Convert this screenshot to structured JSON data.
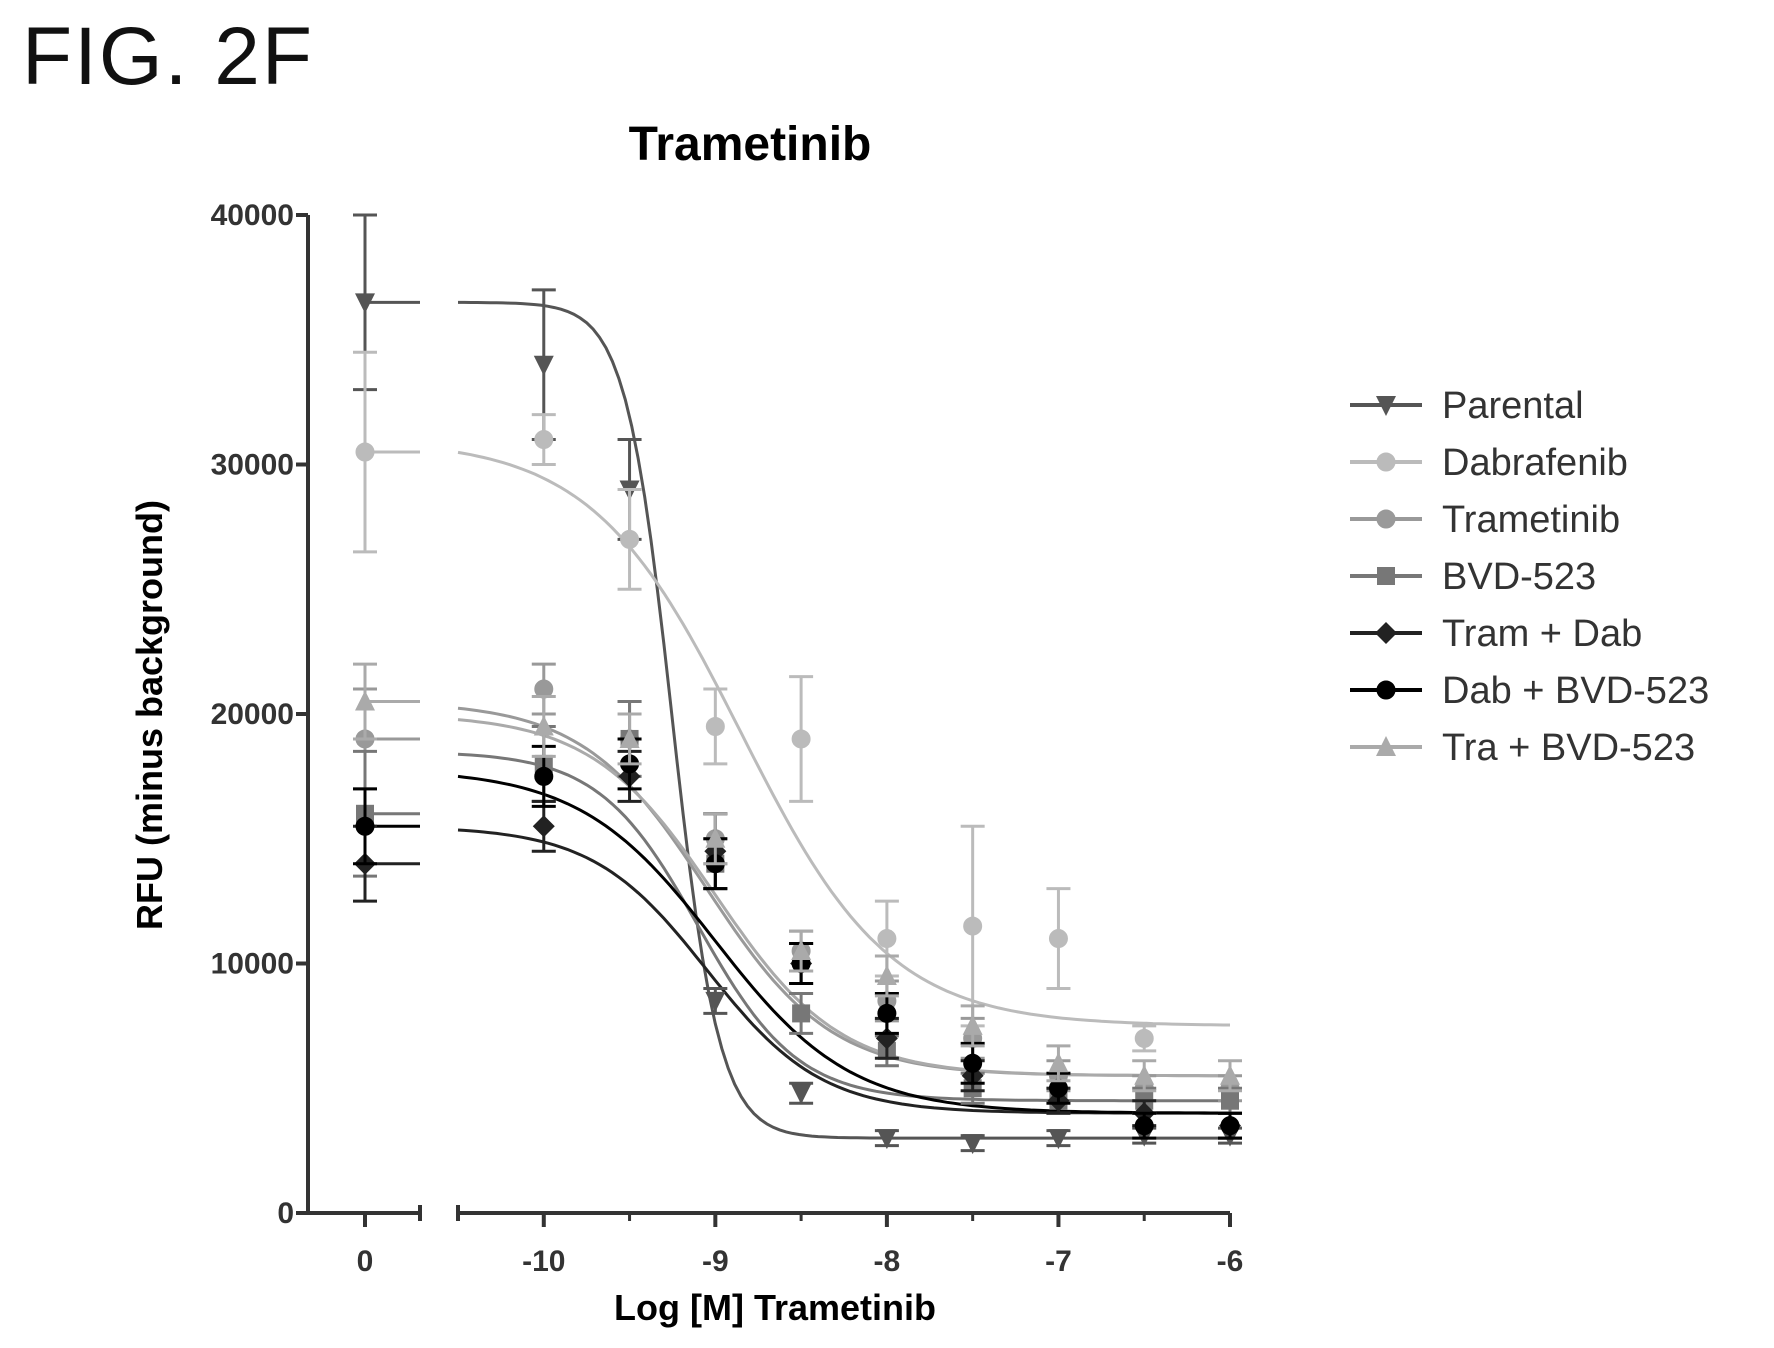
{
  "figure_label": "FIG. 2F",
  "chart_data": {
    "type": "line",
    "title": "Trametinib",
    "xlabel": "Log [M] Trametinib",
    "ylabel": "RFU (minus background)",
    "ylim": [
      0,
      40000
    ],
    "yticks": [
      0,
      10000,
      20000,
      30000,
      40000
    ],
    "yticklabels": [
      "0",
      "10000",
      "20000",
      "30000",
      "40000"
    ],
    "xaxis_segments": [
      [
        -0.5,
        0.5
      ],
      [
        -10.5,
        -6
      ]
    ],
    "xticks": [
      0,
      -10,
      -9,
      -8,
      -7,
      -6
    ],
    "xticklabels": [
      "0",
      "-10",
      "-9",
      "-8",
      "-7",
      "-6"
    ],
    "legend_position": "right",
    "series": [
      {
        "name": "Parental",
        "color": "#555555",
        "marker": "triangle-down",
        "points": [
          [
            0,
            36500
          ],
          [
            -10,
            34000
          ],
          [
            -9.5,
            29000
          ],
          [
            -9,
            8500
          ],
          [
            -8.5,
            4800
          ],
          [
            -8,
            3000
          ],
          [
            -7.5,
            2800
          ],
          [
            -7,
            3000
          ],
          [
            -6.5,
            3100
          ],
          [
            -6,
            3100
          ]
        ],
        "errors": [
          3500,
          3000,
          2000,
          500,
          400,
          300,
          300,
          300,
          300,
          300
        ],
        "fit": {
          "top": 36500,
          "bottom": 3000,
          "logEC50": -9.25,
          "hill": 3.2
        }
      },
      {
        "name": "Dabrafenib",
        "color": "#bbbbbb",
        "marker": "circle",
        "points": [
          [
            0,
            30500
          ],
          [
            -10,
            31000
          ],
          [
            -9.5,
            27000
          ],
          [
            -9,
            19500
          ],
          [
            -8.5,
            19000
          ],
          [
            -8,
            11000
          ],
          [
            -7.5,
            11500
          ],
          [
            -7,
            11000
          ],
          [
            -6.5,
            7000
          ]
        ],
        "errors": [
          4000,
          1000,
          2000,
          1500,
          2500,
          1500,
          4000,
          2000,
          500
        ],
        "fit": {
          "top": 31000,
          "bottom": 7500,
          "logEC50": -8.85,
          "hill": 1.0
        }
      },
      {
        "name": "Trametinib",
        "color": "#999999",
        "marker": "circle",
        "points": [
          [
            0,
            19000
          ],
          [
            -10,
            21000
          ],
          [
            -9.5,
            19000
          ],
          [
            -9,
            15000
          ],
          [
            -8.5,
            10500
          ],
          [
            -8,
            8500
          ],
          [
            -7.5,
            7000
          ],
          [
            -7,
            5500
          ],
          [
            -6.5,
            5000
          ],
          [
            -6,
            5000
          ]
        ],
        "errors": [
          2000,
          1000,
          1500,
          1000,
          800,
          800,
          800,
          600,
          500,
          500
        ],
        "fit": {
          "top": 20500,
          "bottom": 5500,
          "logEC50": -9.05,
          "hill": 1.2
        }
      },
      {
        "name": "BVD-523",
        "color": "#777777",
        "marker": "square",
        "points": [
          [
            0,
            16000
          ],
          [
            -10,
            18000
          ],
          [
            -9.5,
            19000
          ],
          [
            -9,
            14000
          ],
          [
            -8.5,
            8000
          ],
          [
            -8,
            6500
          ],
          [
            -7.5,
            5000
          ],
          [
            -7,
            4500
          ],
          [
            -6.5,
            4500
          ],
          [
            -6,
            4500
          ]
        ],
        "errors": [
          2500,
          1500,
          1500,
          1000,
          800,
          600,
          600,
          500,
          500,
          500
        ],
        "fit": {
          "top": 18500,
          "bottom": 4500,
          "logEC50": -9.1,
          "hill": 1.5
        }
      },
      {
        "name": "Tram + Dab",
        "color": "#222222",
        "marker": "diamond",
        "points": [
          [
            0,
            14000
          ],
          [
            -10,
            15500
          ],
          [
            -9.5,
            17500
          ],
          [
            -9,
            14500
          ],
          [
            -8.5,
            10000
          ],
          [
            -8,
            7000
          ],
          [
            -7.5,
            5500
          ],
          [
            -7,
            4500
          ],
          [
            -6.5,
            4000
          ],
          [
            -6,
            3500
          ]
        ],
        "errors": [
          1500,
          1000,
          1000,
          1500,
          800,
          800,
          600,
          500,
          500,
          500
        ],
        "fit": {
          "top": 15500,
          "bottom": 4000,
          "logEC50": -9.05,
          "hill": 1.3
        }
      },
      {
        "name": "Dab + BVD-523",
        "color": "#000000",
        "marker": "circle",
        "points": [
          [
            0,
            15500
          ],
          [
            -10,
            17500
          ],
          [
            -9.5,
            18000
          ],
          [
            -9,
            14000
          ],
          [
            -8.5,
            10000
          ],
          [
            -8,
            8000
          ],
          [
            -7.5,
            6000
          ],
          [
            -7,
            5000
          ],
          [
            -6.5,
            3500
          ],
          [
            -6,
            3500
          ]
        ],
        "errors": [
          1500,
          1200,
          1000,
          1000,
          800,
          800,
          800,
          600,
          500,
          500
        ],
        "fit": {
          "top": 17800,
          "bottom": 4000,
          "logEC50": -9.0,
          "hill": 1.1
        }
      },
      {
        "name": "Tra + BVD-523",
        "color": "#aaaaaa",
        "marker": "triangle-up",
        "points": [
          [
            0,
            20500
          ],
          [
            -10,
            19500
          ],
          [
            -9.5,
            19000
          ],
          [
            -9,
            15000
          ],
          [
            -8.5,
            10500
          ],
          [
            -8,
            9500
          ],
          [
            -7.5,
            7500
          ],
          [
            -7,
            6000
          ],
          [
            -6.5,
            5500
          ],
          [
            -6,
            5500
          ]
        ],
        "errors": [
          1500,
          1200,
          1000,
          1000,
          800,
          800,
          800,
          700,
          600,
          600
        ],
        "fit": {
          "top": 20000,
          "bottom": 5500,
          "logEC50": -9.0,
          "hill": 1.2
        }
      }
    ]
  }
}
